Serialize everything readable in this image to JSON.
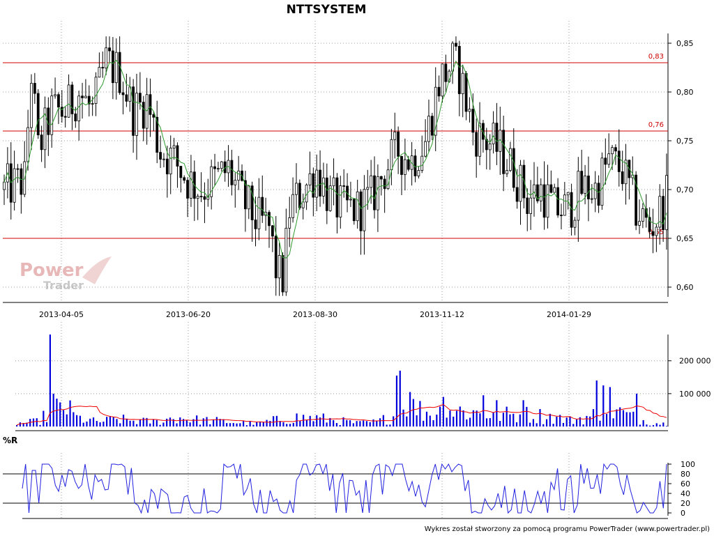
{
  "chart_data": [
    {
      "type": "candlestick",
      "title": "NTTSYSTEM",
      "ylim": [
        0.59,
        0.86
      ],
      "y_ticks": [
        "0,85",
        "0,80",
        "0,75",
        "0,70",
        "0,65",
        "0,60"
      ],
      "x_tick_labels": [
        "2013-04-05",
        "2013-06-20",
        "2013-08-30",
        "2013-11-12",
        "2014-01-29"
      ],
      "levels": [
        {
          "value": 0.83,
          "label": "0,83"
        },
        {
          "value": 0.76,
          "label": "0,76"
        },
        {
          "value": 0.65,
          "label": "0,65"
        }
      ],
      "price_path": [
        [
          0,
          0.7
        ],
        [
          6,
          0.71
        ],
        [
          8,
          0.82
        ],
        [
          10,
          0.74
        ],
        [
          14,
          0.78
        ],
        [
          18,
          0.78
        ],
        [
          22,
          0.8
        ],
        [
          26,
          0.78
        ],
        [
          30,
          0.83
        ],
        [
          34,
          0.82
        ],
        [
          38,
          0.78
        ],
        [
          42,
          0.79
        ],
        [
          46,
          0.74
        ],
        [
          50,
          0.73
        ],
        [
          54,
          0.71
        ],
        [
          58,
          0.7
        ],
        [
          62,
          0.71
        ],
        [
          66,
          0.72
        ],
        [
          70,
          0.69
        ],
        [
          74,
          0.67
        ],
        [
          78,
          0.66
        ],
        [
          80,
          0.62
        ],
        [
          82,
          0.6
        ],
        [
          84,
          0.68
        ],
        [
          88,
          0.7
        ],
        [
          92,
          0.72
        ],
        [
          96,
          0.69
        ],
        [
          100,
          0.68
        ],
        [
          104,
          0.68
        ],
        [
          108,
          0.69
        ],
        [
          112,
          0.72
        ],
        [
          116,
          0.74
        ],
        [
          120,
          0.73
        ],
        [
          124,
          0.75
        ],
        [
          128,
          0.81
        ],
        [
          130,
          0.82
        ],
        [
          132,
          0.83
        ],
        [
          134,
          0.82
        ],
        [
          138,
          0.76
        ],
        [
          142,
          0.75
        ],
        [
          146,
          0.74
        ],
        [
          150,
          0.72
        ],
        [
          154,
          0.69
        ],
        [
          158,
          0.7
        ],
        [
          162,
          0.68
        ],
        [
          166,
          0.68
        ],
        [
          170,
          0.7
        ],
        [
          174,
          0.7
        ],
        [
          178,
          0.73
        ],
        [
          182,
          0.72
        ],
        [
          186,
          0.68
        ],
        [
          190,
          0.66
        ],
        [
          192,
          0.67
        ],
        [
          195,
          0.69
        ]
      ],
      "price_series_names": [
        "",
        ""
      ]
    },
    {
      "type": "bar",
      "y_ticks": [
        "200 000",
        "100 000"
      ],
      "ylim": [
        0,
        280000
      ],
      "volume_path": [
        [
          0,
          9000
        ],
        [
          6,
          15000
        ],
        [
          10,
          40000
        ],
        [
          14,
          65000
        ],
        [
          18,
          26000
        ],
        [
          24,
          14000
        ],
        [
          30,
          22000
        ],
        [
          36,
          17000
        ],
        [
          42,
          14000
        ],
        [
          48,
          28000
        ],
        [
          54,
          20000
        ],
        [
          60,
          17000
        ],
        [
          66,
          12000
        ],
        [
          72,
          8000
        ],
        [
          78,
          20000
        ],
        [
          84,
          27000
        ],
        [
          90,
          25000
        ],
        [
          96,
          19000
        ],
        [
          102,
          10000
        ],
        [
          108,
          14000
        ],
        [
          114,
          36000
        ],
        [
          118,
          60000
        ],
        [
          124,
          40000
        ],
        [
          130,
          50000
        ],
        [
          136,
          44000
        ],
        [
          142,
          38000
        ],
        [
          148,
          35000
        ],
        [
          154,
          36000
        ],
        [
          160,
          30000
        ],
        [
          166,
          19000
        ],
        [
          172,
          30000
        ],
        [
          178,
          55000
        ],
        [
          184,
          31000
        ],
        [
          190,
          12000
        ],
        [
          195,
          8000
        ]
      ],
      "spikes": [
        [
          10,
          280000
        ],
        [
          11,
          100000
        ],
        [
          114,
          155000
        ],
        [
          115,
          170000
        ],
        [
          118,
          105000
        ],
        [
          128,
          90000
        ],
        [
          140,
          95000
        ],
        [
          144,
          80000
        ],
        [
          152,
          80000
        ],
        [
          174,
          140000
        ],
        [
          176,
          125000
        ],
        [
          178,
          120000
        ],
        [
          186,
          100000
        ]
      ],
      "series_names": [
        "",
        ""
      ]
    },
    {
      "type": "line",
      "title": "%R",
      "y_ticks": [
        "100",
        "80",
        "60",
        "40",
        "20",
        "0"
      ],
      "ylim": [
        0,
        100
      ],
      "levels": [
        80,
        20
      ]
    }
  ],
  "footer": {
    "text": "Wykres został stworzony za pomocą programu PowerTrader (www.powertrader.pl)"
  },
  "watermark": {
    "line1": "Power",
    "line2": "Trader"
  },
  "colors": {
    "candle": "#000000",
    "sma": "#2e9b2e",
    "level": "#d00000",
    "volume": "#0000dd",
    "volume_avg": "#ee0000",
    "wpr": "#2020e0",
    "grid": "#999999"
  }
}
